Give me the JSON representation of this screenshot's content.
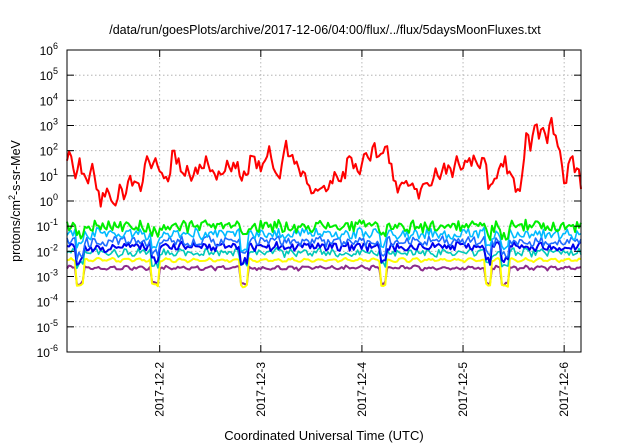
{
  "chart_data": {
    "type": "line",
    "title": "/data/run/goesPlots/archive/2017-12-06/04:00/flux/../flux/5daysMoonFluxes.txt",
    "xlabel": "Coordinated Universal Time (UTC)",
    "ylabel": "protons/cm2-s-sr-MeV",
    "ylabel_parts": {
      "pre": "protons/cm",
      "sup": "2",
      "post": "-s-sr-MeV"
    },
    "yscale": "log",
    "ylim_exp": [
      -6,
      6
    ],
    "y_tick_exponents": [
      -6,
      -5,
      -4,
      -3,
      -2,
      -1,
      0,
      1,
      2,
      3,
      4,
      5,
      6
    ],
    "x_range_days": [
      "2017-12-01T02:00",
      "2017-12-06T04:00"
    ],
    "x_ticks": [
      {
        "label": "2017-12-2",
        "date": "2017-12-02T00:00"
      },
      {
        "label": "2017-12-3",
        "date": "2017-12-03T00:00"
      },
      {
        "label": "2017-12-4",
        "date": "2017-12-04T00:00"
      },
      {
        "label": "2017-12-5",
        "date": "2017-12-05T00:00"
      },
      {
        "label": "2017-12-6",
        "date": "2017-12-06T00:00"
      }
    ],
    "grid": true,
    "series": [
      {
        "color": "#ff0000",
        "width": 2.0,
        "points": [
          [
            "2017-12-01T02:00",
            40
          ],
          [
            "2017-12-01T03:00",
            60
          ],
          [
            "2017-12-01T04:00",
            8
          ],
          [
            "2017-12-01T05:00",
            50
          ],
          [
            "2017-12-01T06:00",
            12
          ],
          [
            "2017-12-01T07:00",
            5
          ],
          [
            "2017-12-01T08:00",
            30
          ],
          [
            "2017-12-01T09:00",
            3
          ],
          [
            "2017-12-01T10:00",
            0.6
          ],
          [
            "2017-12-01T11:00",
            1.5
          ],
          [
            "2017-12-01T12:00",
            2
          ],
          [
            "2017-12-01T13:00",
            0.8
          ],
          [
            "2017-12-01T14:00",
            1.2
          ],
          [
            "2017-12-01T15:00",
            3
          ],
          [
            "2017-12-01T16:00",
            2
          ],
          [
            "2017-12-01T17:00",
            10
          ],
          [
            "2017-12-01T18:00",
            6
          ],
          [
            "2017-12-01T19:00",
            5
          ],
          [
            "2017-12-01T20:00",
            6
          ],
          [
            "2017-12-01T21:00",
            60
          ],
          [
            "2017-12-01T22:00",
            20
          ],
          [
            "2017-12-01T23:00",
            50
          ],
          [
            "2017-12-02T00:00",
            15
          ],
          [
            "2017-12-02T01:00",
            8
          ],
          [
            "2017-12-02T02:00",
            6
          ],
          [
            "2017-12-02T03:00",
            100
          ],
          [
            "2017-12-02T04:00",
            30
          ],
          [
            "2017-12-02T05:00",
            15
          ],
          [
            "2017-12-02T06:00",
            10
          ],
          [
            "2017-12-02T07:00",
            12
          ],
          [
            "2017-12-02T08:00",
            10
          ],
          [
            "2017-12-02T09:00",
            12
          ],
          [
            "2017-12-02T10:00",
            20
          ],
          [
            "2017-12-02T11:00",
            60
          ],
          [
            "2017-12-02T12:00",
            15
          ],
          [
            "2017-12-02T13:00",
            12
          ],
          [
            "2017-12-02T14:00",
            15
          ],
          [
            "2017-12-02T15:00",
            12
          ],
          [
            "2017-12-02T16:00",
            40
          ],
          [
            "2017-12-02T17:00",
            15
          ],
          [
            "2017-12-02T18:00",
            20
          ],
          [
            "2017-12-02T19:00",
            10
          ],
          [
            "2017-12-02T20:00",
            15
          ],
          [
            "2017-12-02T21:00",
            12
          ],
          [
            "2017-12-02T22:00",
            60
          ],
          [
            "2017-12-02T23:00",
            20
          ],
          [
            "2017-12-03T00:00",
            15
          ],
          [
            "2017-12-03T01:00",
            40
          ],
          [
            "2017-12-03T02:00",
            150
          ],
          [
            "2017-12-03T03:00",
            20
          ],
          [
            "2017-12-03T04:00",
            10
          ],
          [
            "2017-12-03T05:00",
            30
          ],
          [
            "2017-12-03T06:00",
            250
          ],
          [
            "2017-12-03T07:00",
            60
          ],
          [
            "2017-12-03T08:00",
            30
          ],
          [
            "2017-12-03T09:00",
            20
          ],
          [
            "2017-12-03T10:00",
            15
          ],
          [
            "2017-12-03T11:00",
            5
          ],
          [
            "2017-12-03T12:00",
            2
          ],
          [
            "2017-12-03T13:00",
            3
          ],
          [
            "2017-12-03T14:00",
            3
          ],
          [
            "2017-12-03T15:00",
            4
          ],
          [
            "2017-12-03T16:00",
            3
          ],
          [
            "2017-12-03T17:00",
            5
          ],
          [
            "2017-12-03T18:00",
            10
          ],
          [
            "2017-12-03T19:00",
            6
          ],
          [
            "2017-12-03T20:00",
            8
          ],
          [
            "2017-12-03T21:00",
            60
          ],
          [
            "2017-12-03T22:00",
            20
          ],
          [
            "2017-12-03T23:00",
            15
          ],
          [
            "2017-12-04T00:00",
            30
          ],
          [
            "2017-12-04T01:00",
            80
          ],
          [
            "2017-12-04T02:00",
            40
          ],
          [
            "2017-12-04T03:00",
            200
          ],
          [
            "2017-12-04T04:00",
            60
          ],
          [
            "2017-12-04T05:00",
            80
          ],
          [
            "2017-12-04T06:00",
            150
          ],
          [
            "2017-12-04T07:00",
            30
          ],
          [
            "2017-12-04T08:00",
            6
          ],
          [
            "2017-12-04T09:00",
            4
          ],
          [
            "2017-12-04T10:00",
            5
          ],
          [
            "2017-12-04T11:00",
            4
          ],
          [
            "2017-12-04T12:00",
            5
          ],
          [
            "2017-12-04T13:00",
            3
          ],
          [
            "2017-12-04T14:00",
            3
          ],
          [
            "2017-12-04T15:00",
            5
          ],
          [
            "2017-12-04T16:00",
            4
          ],
          [
            "2017-12-04T17:00",
            8
          ],
          [
            "2017-12-04T18:00",
            10
          ],
          [
            "2017-12-04T19:00",
            15
          ],
          [
            "2017-12-04T20:00",
            12
          ],
          [
            "2017-12-04T21:00",
            20
          ],
          [
            "2017-12-04T22:00",
            25
          ],
          [
            "2017-12-04T23:00",
            30
          ],
          [
            "2017-12-05T00:00",
            20
          ],
          [
            "2017-12-05T01:00",
            35
          ],
          [
            "2017-12-05T02:00",
            25
          ],
          [
            "2017-12-05T03:00",
            40
          ],
          [
            "2017-12-05T04:00",
            20
          ],
          [
            "2017-12-05T05:00",
            50
          ],
          [
            "2017-12-05T06:00",
            3
          ],
          [
            "2017-12-05T07:00",
            5
          ],
          [
            "2017-12-05T08:00",
            8
          ],
          [
            "2017-12-05T09:00",
            30
          ],
          [
            "2017-12-05T10:00",
            60
          ],
          [
            "2017-12-05T11:00",
            15
          ],
          [
            "2017-12-05T12:00",
            8
          ],
          [
            "2017-12-05T13:00",
            3
          ],
          [
            "2017-12-05T14:00",
            10
          ],
          [
            "2017-12-05T15:00",
            500
          ],
          [
            "2017-12-05T16:00",
            100
          ],
          [
            "2017-12-05T17:00",
            1000
          ],
          [
            "2017-12-05T18:00",
            300
          ],
          [
            "2017-12-05T19:00",
            800
          ],
          [
            "2017-12-05T20:00",
            200
          ],
          [
            "2017-12-05T21:00",
            2000
          ],
          [
            "2017-12-05T22:00",
            400
          ],
          [
            "2017-12-05T23:00",
            100
          ],
          [
            "2017-12-06T00:00",
            5
          ],
          [
            "2017-12-06T01:00",
            30
          ],
          [
            "2017-12-06T02:00",
            60
          ],
          [
            "2017-12-06T03:00",
            20
          ],
          [
            "2017-12-06T04:00",
            3
          ]
        ]
      },
      {
        "color": "#00ee00",
        "width": 2.0,
        "base": 0.1,
        "amp": 0.22,
        "dip": 0.5
      },
      {
        "color": "#00bbff",
        "width": 1.6,
        "base": 0.05,
        "amp": 0.2,
        "dip": 0.35
      },
      {
        "color": "#1e6cff",
        "width": 1.6,
        "base": 0.025,
        "amp": 0.18,
        "dip": 0.3
      },
      {
        "color": "#0000ee",
        "width": 2.0,
        "base": 0.015,
        "amp": 0.16,
        "dip": 0.3
      },
      {
        "color": "#00c8b8",
        "width": 1.6,
        "base": 0.009,
        "amp": 0.14,
        "dip": 0.35
      },
      {
        "color": "#ffff00",
        "width": 2.0,
        "base": 0.0045,
        "amp": 0.04,
        "dip": 0.1
      },
      {
        "color": "#8b2a8b",
        "width": 2.0,
        "base": 0.0022,
        "amp": 0.06,
        "dip": 0.25
      }
    ]
  }
}
